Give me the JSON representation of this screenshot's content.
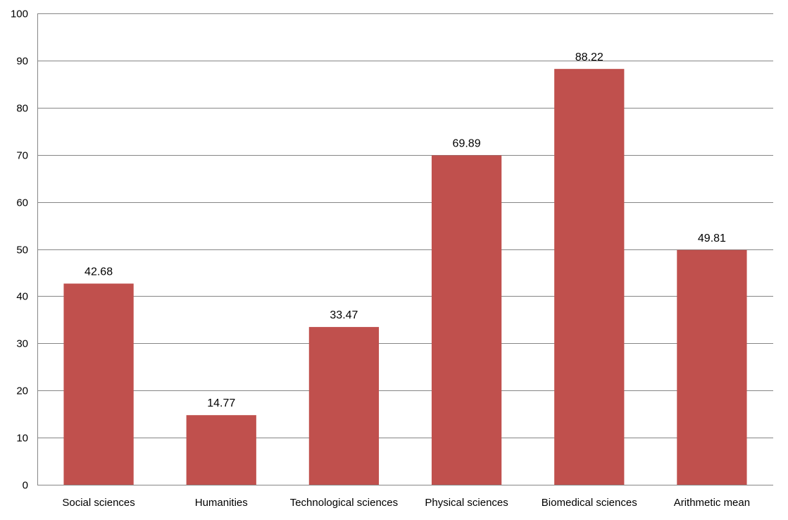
{
  "chart_data": {
    "type": "bar",
    "title": "",
    "xlabel": "",
    "ylabel": "",
    "categories": [
      "Social sciences",
      "Humanities",
      "Technological sciences",
      "Physical sciences",
      "Biomedical sciences",
      "Arithmetic mean"
    ],
    "values": [
      42.68,
      14.77,
      33.47,
      69.89,
      88.22,
      49.81
    ],
    "data_labels": [
      "42.68",
      "14.77",
      "33.47",
      "69.89",
      "88.22",
      "49.81"
    ],
    "ylim": [
      0,
      100
    ],
    "yticks": [
      "0",
      "10",
      "20",
      "30",
      "40",
      "50",
      "60",
      "70",
      "80",
      "90",
      "100"
    ],
    "grid": true,
    "legend": "none",
    "colors": {
      "bar": "#C0504D",
      "grid": "#868686",
      "axis": "#868686"
    }
  }
}
